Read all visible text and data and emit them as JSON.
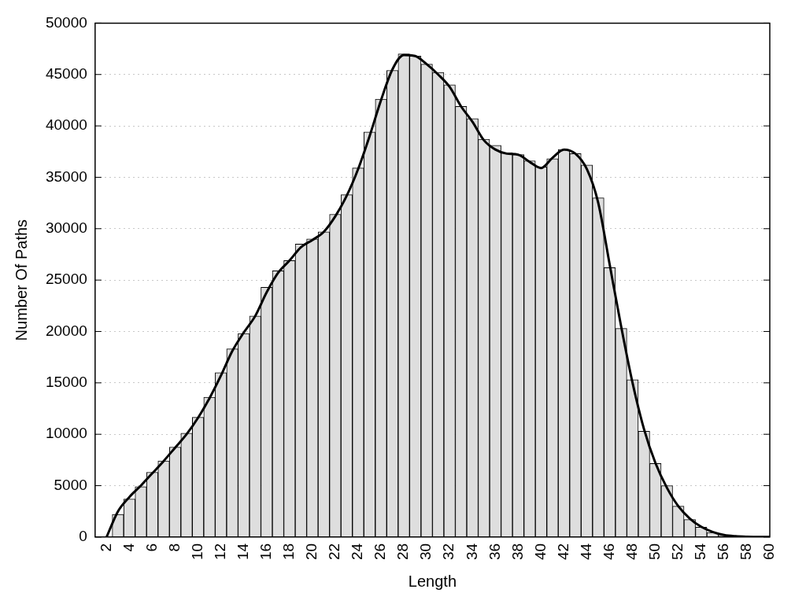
{
  "chart_data": {
    "type": "histogram",
    "xlabel": "Length",
    "ylabel": "Number Of Paths",
    "bins": [
      2.5,
      3.5,
      4.5,
      5.5,
      6.5,
      7.5,
      8.5,
      9.5,
      10.5,
      11.5,
      12.5,
      13.5,
      14.5,
      15.5,
      16.5,
      17.5,
      18.5,
      19.5,
      20.5,
      21.5,
      22.5,
      23.5,
      24.5,
      25.5,
      26.5,
      27.5,
      28.5,
      29.5,
      30.5,
      31.5,
      32.5,
      33.5,
      34.5,
      35.5,
      36.5,
      37.5,
      38.5,
      39.5,
      40.5,
      41.5,
      42.5,
      43.5,
      44.5,
      45.5,
      46.5,
      47.5,
      48.5,
      49.5,
      50.5,
      51.5,
      52.5,
      53.5,
      54.5,
      55.5,
      56.5,
      57.5,
      58.5,
      59.5
    ],
    "values": [
      2200,
      3700,
      4900,
      6300,
      7400,
      8750,
      10100,
      11650,
      13600,
      16000,
      18300,
      19800,
      21500,
      24300,
      25900,
      26900,
      28500,
      29000,
      29700,
      31400,
      33300,
      35900,
      39400,
      42600,
      45400,
      47000,
      46800,
      46000,
      45200,
      44000,
      41900,
      40700,
      38700,
      38100,
      37400,
      37200,
      36600,
      36000,
      36800,
      37700,
      37300,
      36200,
      33000,
      26200,
      20300,
      15300,
      10300,
      7150,
      5000,
      3000,
      1700,
      950,
      450,
      150,
      80,
      50,
      30
    ],
    "color": "#dedede",
    "series": [
      {
        "type": "line",
        "color": "#000000",
        "x": [
          2,
          3,
          4,
          5,
          6,
          7,
          8,
          9,
          10,
          11,
          12,
          13,
          14,
          15,
          16,
          17,
          18,
          19,
          20,
          21,
          22,
          23,
          24,
          25,
          26,
          27,
          28,
          29,
          30,
          31,
          32,
          33,
          34,
          35,
          36,
          37,
          38,
          39,
          40,
          41,
          42,
          43,
          44,
          45,
          46,
          47,
          48,
          49,
          50,
          51,
          52,
          53,
          54,
          55,
          56,
          57,
          58,
          59,
          60
        ],
        "values": [
          0,
          2500,
          3900,
          5000,
          6200,
          7400,
          8700,
          10000,
          11600,
          13500,
          15700,
          18100,
          19900,
          21500,
          23800,
          25700,
          26900,
          28200,
          28900,
          29700,
          31200,
          33200,
          35800,
          39000,
          42500,
          45500,
          46900,
          46800,
          46000,
          45000,
          43800,
          41900,
          40400,
          38600,
          37700,
          37300,
          37200,
          36500,
          35900,
          36900,
          37700,
          37300,
          35800,
          32500,
          26500,
          20500,
          15000,
          10500,
          7200,
          4800,
          3000,
          1800,
          1000,
          500,
          200,
          80,
          30,
          10,
          0
        ]
      }
    ],
    "xlim": [
      1,
      60
    ],
    "xticks": [
      2,
      4,
      6,
      8,
      10,
      12,
      14,
      16,
      18,
      20,
      22,
      24,
      26,
      28,
      30,
      32,
      34,
      36,
      38,
      40,
      42,
      44,
      46,
      48,
      50,
      52,
      54,
      56,
      58,
      60
    ],
    "ylim": [
      0,
      50000
    ],
    "yticks": [
      0,
      5000,
      10000,
      15000,
      20000,
      25000,
      30000,
      35000,
      40000,
      45000,
      50000
    ],
    "grid": "y",
    "legend": false,
    "marker": "none",
    "line_style": "solid"
  }
}
